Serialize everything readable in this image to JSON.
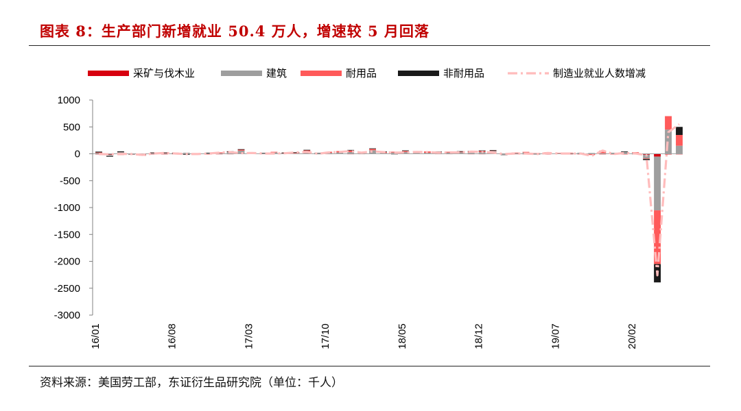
{
  "title": "图表 8：生产部门新增就业 50.4 万人，增速较 5 月回落",
  "source": "资料来源：美国劳工部，东证衍生品研究院（单位：千人）",
  "chart_data": {
    "type": "bar",
    "stacked": true,
    "ylim": [
      -3000,
      1000
    ],
    "yticks": [
      1000,
      500,
      0,
      -500,
      -1000,
      -1500,
      -2000,
      -2500,
      -3000
    ],
    "xlabel": "",
    "ylabel": "",
    "legend_position": "top",
    "x_ticklabels": [
      "16/01",
      "16/08",
      "17/03",
      "17/10",
      "18/05",
      "18/12",
      "19/07",
      "20/02"
    ],
    "categories": [
      "16/01",
      "16/02",
      "16/03",
      "16/04",
      "16/05",
      "16/06",
      "16/07",
      "16/08",
      "16/09",
      "16/10",
      "16/11",
      "16/12",
      "17/01",
      "17/02",
      "17/03",
      "17/04",
      "17/05",
      "17/06",
      "17/07",
      "17/08",
      "17/09",
      "17/10",
      "17/11",
      "17/12",
      "18/01",
      "18/02",
      "18/03",
      "18/04",
      "18/05",
      "18/06",
      "18/07",
      "18/08",
      "18/09",
      "18/10",
      "18/11",
      "18/12",
      "19/01",
      "19/02",
      "19/03",
      "19/04",
      "19/05",
      "19/06",
      "19/07",
      "19/08",
      "19/09",
      "19/10",
      "19/11",
      "19/12",
      "20/01",
      "20/02",
      "20/03",
      "20/04",
      "20/05",
      "20/06"
    ],
    "series": [
      {
        "name": "采矿与伐木业",
        "kind": "bar",
        "color": "#d7000f",
        "values": [
          -8,
          -15,
          -13,
          -10,
          -12,
          -5,
          -3,
          -3,
          -2,
          0,
          -3,
          1,
          2,
          8,
          7,
          3,
          7,
          4,
          4,
          9,
          4,
          3,
          6,
          2,
          3,
          6,
          7,
          4,
          8,
          4,
          4,
          3,
          3,
          4,
          2,
          2,
          4,
          2,
          2,
          1,
          2,
          -1,
          0,
          -1,
          -2,
          -3,
          -4,
          -1,
          -2,
          -9,
          -17,
          -52,
          -12,
          -4
        ]
      },
      {
        "name": "建筑",
        "kind": "bar",
        "color": "#9e9e9e",
        "values": [
          20,
          -30,
          30,
          -5,
          -15,
          10,
          5,
          10,
          20,
          -5,
          15,
          10,
          30,
          50,
          10,
          5,
          20,
          10,
          5,
          30,
          -10,
          15,
          20,
          30,
          20,
          60,
          10,
          20,
          25,
          10,
          15,
          20,
          20,
          25,
          20,
          30,
          50,
          -30,
          15,
          30,
          5,
          20,
          10,
          15,
          20,
          15,
          10,
          20,
          40,
          25,
          -70,
          -1000,
          450,
          150
        ]
      },
      {
        "name": "耐用品",
        "kind": "bar",
        "color": "#ff5a5a",
        "values": [
          5,
          0,
          -10,
          0,
          -10,
          10,
          10,
          5,
          -5,
          0,
          -10,
          15,
          10,
          20,
          10,
          5,
          10,
          5,
          15,
          25,
          5,
          20,
          25,
          30,
          15,
          25,
          15,
          15,
          20,
          20,
          25,
          15,
          15,
          15,
          20,
          20,
          10,
          5,
          5,
          5,
          5,
          10,
          5,
          5,
          0,
          -20,
          50,
          -10,
          -10,
          5,
          -10,
          -1000,
          250,
          200
        ]
      },
      {
        "name": "非耐用品",
        "kind": "bar",
        "color": "#1a1a1a",
        "values": [
          15,
          -8,
          15,
          0,
          0,
          5,
          10,
          5,
          -5,
          0,
          5,
          0,
          5,
          8,
          5,
          2,
          0,
          5,
          5,
          10,
          5,
          0,
          0,
          10,
          0,
          10,
          10,
          -5,
          10,
          10,
          0,
          5,
          0,
          5,
          10,
          10,
          5,
          0,
          0,
          0,
          -5,
          0,
          0,
          0,
          0,
          0,
          0,
          0,
          5,
          0,
          -20,
          -340,
          0,
          150
        ]
      },
      {
        "name": "制造业就业人数增减",
        "kind": "line",
        "color": "#ffbcbc",
        "values": [
          -5,
          -10,
          0,
          -5,
          -20,
          5,
          15,
          5,
          -5,
          -5,
          5,
          20,
          30,
          10,
          15,
          5,
          5,
          10,
          25,
          35,
          0,
          25,
          35,
          50,
          20,
          45,
          30,
          20,
          25,
          35,
          30,
          20,
          25,
          25,
          40,
          35,
          20,
          -5,
          5,
          5,
          -5,
          15,
          5,
          5,
          5,
          -40,
          60,
          -5,
          15,
          5,
          -25,
          -2260,
          400,
          550
        ]
      }
    ]
  }
}
